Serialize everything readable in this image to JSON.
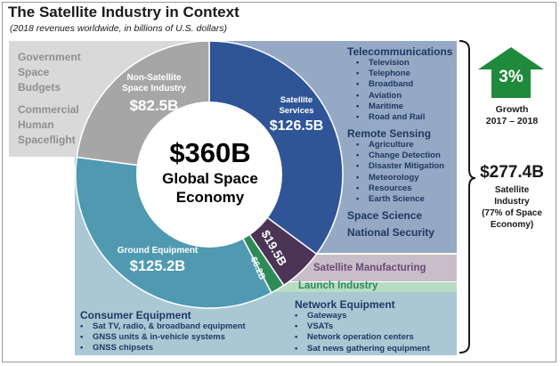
{
  "title": "The Satellite Industry in Context",
  "subtitle": "(2018 revenues worldwide, in billions of U.S. dollars)",
  "center": {
    "total": "$360B",
    "line1": "Global Space",
    "line2": "Economy"
  },
  "outer_segments": {
    "government": [
      "Government",
      "Space",
      "Budgets"
    ],
    "commercial": [
      "Commercial",
      "Human",
      "Spaceflight"
    ]
  },
  "right_panel": {
    "telecom": {
      "heading": "Telecommunications",
      "items": [
        "Television",
        "Telephone",
        "Broadband",
        "Aviation",
        "Maritime",
        "Road and Rail"
      ]
    },
    "remote": {
      "heading": "Remote Sensing",
      "items": [
        "Agriculture",
        "Change Detection",
        "Disaster Mitigation",
        "Meteorology",
        "Resources",
        "Earth Science"
      ]
    },
    "space_science": "Space Science",
    "national_security": "National Security"
  },
  "satellite_manufacturing": "Satellite Manufacturing",
  "launch_industry": "Launch Industry",
  "consumer": {
    "heading": "Consumer Equipment",
    "items": [
      "Sat TV, radio, & broadband equipment",
      "GNSS units & in-vehicle systems",
      "GNSS chipsets"
    ]
  },
  "network": {
    "heading": "Network Equipment",
    "items": [
      "Gateways",
      "VSATs",
      "Network operation centers",
      "Sat news gathering equipment"
    ]
  },
  "growth": {
    "pct": "3%",
    "label1": "Growth",
    "label2": "2017 – 2018"
  },
  "satellite_industry": {
    "value": "$277.4B",
    "line1": "Satellite",
    "line2": "Industry",
    "line3": "(77% of Space",
    "line4": "Economy)"
  },
  "bullet": "•",
  "colors": {
    "non_satellite": "#a6a6a6",
    "satellite_services": "#2f5597",
    "ground": "#4f9ab0",
    "manufacturing": "#4b3455",
    "launch": "#2e8b57",
    "services_panel": "#95a8c4",
    "ground_panel": "#a9c8d4",
    "mfg_panel": "#c9bdca",
    "launch_panel": "#b8dcc4",
    "gov_panel": "#d9d9d9",
    "growth_arrow": "#1f8a3b"
  },
  "chart_data": {
    "type": "pie",
    "title": "The Satellite Industry in Context",
    "subtitle": "(2018 revenues worldwide, in billions of U.S. dollars)",
    "total": 360,
    "categories": [
      "Satellite Services",
      "Satellite Manufacturing",
      "Launch Industry",
      "Ground Equipment",
      "Non-Satellite Space Industry"
    ],
    "values": [
      126.5,
      19.5,
      6.2,
      125.2,
      82.5
    ],
    "labels": [
      "$126.5B",
      "$19.5B",
      "$6.2B",
      "$125.2B",
      "$82.5B"
    ],
    "segment_names": [
      "Satellite\nServices",
      "",
      "",
      "Ground Equipment",
      "Non-Satellite\nSpace Industry"
    ]
  }
}
